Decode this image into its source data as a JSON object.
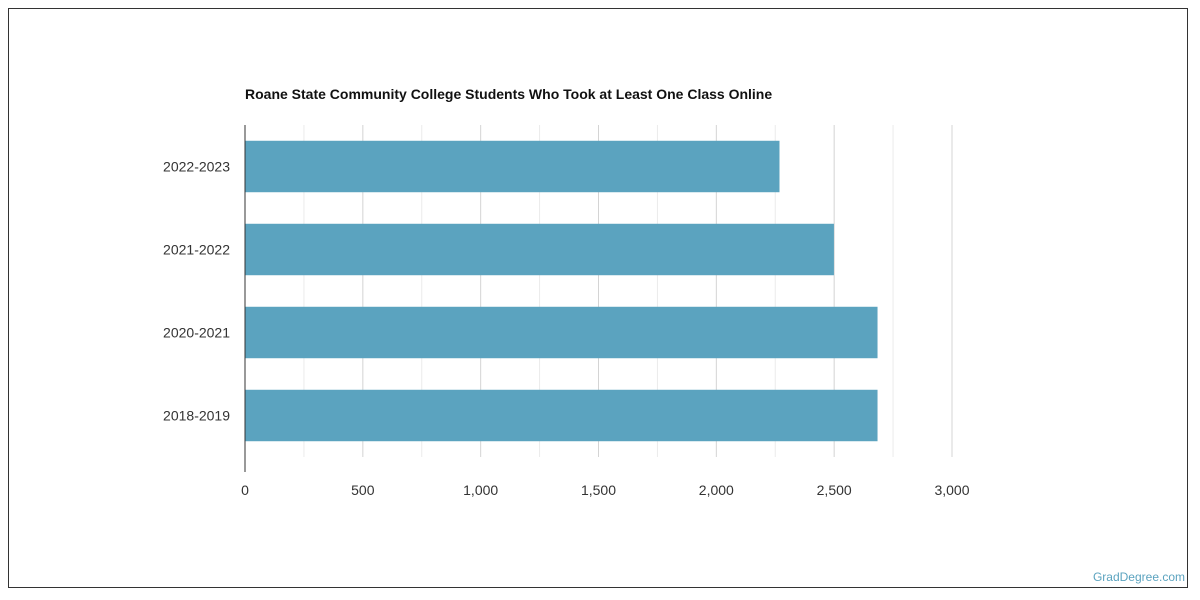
{
  "chart_data": {
    "type": "bar",
    "orientation": "horizontal",
    "title": "Roane State Community College Students Who Took at Least One Class Online",
    "categories": [
      "2022-2023",
      "2021-2022",
      "2020-2021",
      "2018-2019"
    ],
    "values": [
      2268,
      2499,
      2684,
      2684
    ],
    "xlim": [
      0,
      3000
    ],
    "xticks": [
      0,
      500,
      1000,
      1500,
      2000,
      2500,
      3000
    ],
    "xtick_labels": [
      "0",
      "500",
      "1,000",
      "1,500",
      "2,000",
      "2,500",
      "3,000"
    ],
    "xlabel": "",
    "ylabel": "",
    "grid": true,
    "bar_color": "#5ba3bf"
  },
  "credit": "GradDegree.com"
}
